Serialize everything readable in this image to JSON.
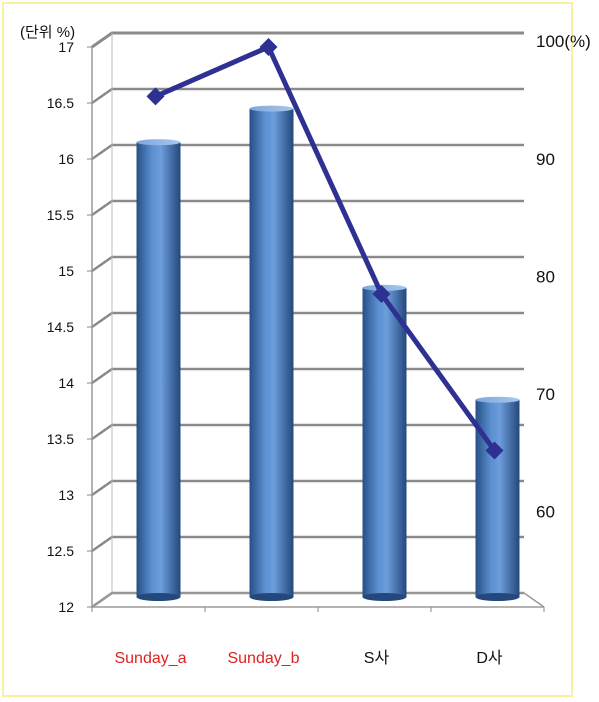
{
  "chart_data": {
    "type": "bar",
    "categories": [
      "Sunday_a",
      "Sunday_b",
      "S사",
      "D사"
    ],
    "category_colors": [
      "#e02020",
      "#e02020",
      "#111111",
      "#111111"
    ],
    "unit_label": "(단위 %)",
    "series": [
      {
        "type": "bar",
        "axis": "left",
        "values": [
          16.15,
          16.45,
          14.85,
          13.85
        ],
        "color": "#4a7ebb"
      },
      {
        "type": "line",
        "axis": "right",
        "values": [
          95.3,
          99.5,
          78.5,
          65.2
        ],
        "color": "#2e3192"
      }
    ],
    "y_left": {
      "min": 12,
      "max": 17,
      "step": 0.5,
      "tick_labels": [
        "12",
        "12.5",
        "13",
        "13.5",
        "14",
        "14.5",
        "15",
        "15.5",
        "16",
        "16.5",
        "17"
      ]
    },
    "y_right": {
      "min": 51.9,
      "max": 99.5,
      "ticks": [
        60,
        70,
        80,
        90,
        100
      ],
      "tick_labels": [
        "60",
        "70",
        "80",
        "90",
        "100(%)"
      ]
    },
    "grid": true,
    "legend": "none",
    "style": "3d-cylinder"
  }
}
